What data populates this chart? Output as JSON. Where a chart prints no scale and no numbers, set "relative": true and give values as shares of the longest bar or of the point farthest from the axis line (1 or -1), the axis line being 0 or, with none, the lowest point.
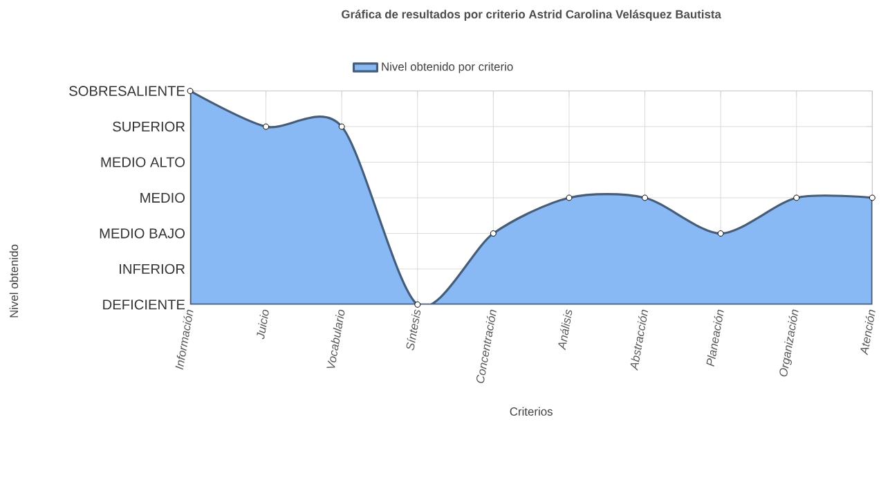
{
  "chart_data": {
    "type": "area",
    "title": "Gráfica de resultados por criterio Astrid Carolina Velásquez Bautista",
    "xlabel": "Criterios",
    "categories": [
      "Información",
      "Juicio",
      "Vocabulario",
      "Síntesis",
      "Concentración",
      "Análisis",
      "Abstracción",
      "Planeación",
      "Organización",
      "Atención"
    ],
    "series": [
      {
        "name": "Nivel obtenido por criterio",
        "color": "#89b9f5",
        "values": [
          1,
          0.833,
          0.833,
          0,
          0.333,
          0.5,
          0.5,
          0.333,
          0.5,
          0.5
        ]
      }
    ],
    "relative": true,
    "annotations": [
      "SOBRESALIENTE",
      "SUPERIOR",
      "MEDIO ALTO",
      "MEDIO",
      "MEDIO BAJO",
      "INFERIOR",
      "DEFICIENTE",
      "Nivel obtenido"
    ],
    "grid": true,
    "legend": "top",
    "marker": "circle",
    "line_style": "solid"
  }
}
